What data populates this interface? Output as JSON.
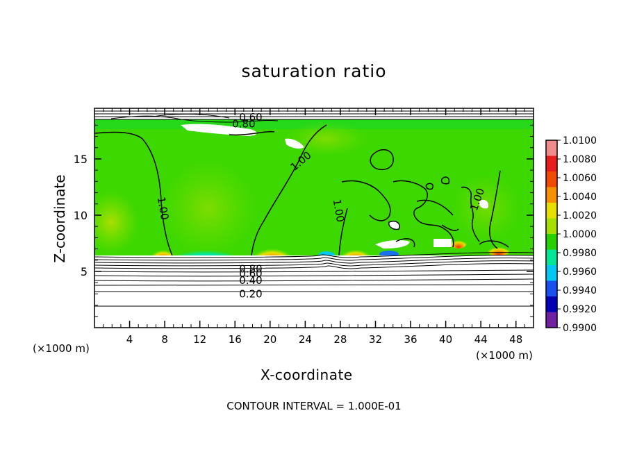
{
  "chart_data": {
    "type": "heatmap",
    "title": "saturation ratio",
    "xlabel": "X-coordinate",
    "ylabel": "Z-coordinate",
    "x_unit": "(×1000 m)",
    "x_unit_left": "(×1000 m)",
    "xlim": [
      0,
      50
    ],
    "ylim": [
      0,
      19.5
    ],
    "x_ticks": [
      4,
      8,
      12,
      16,
      20,
      24,
      28,
      32,
      36,
      40,
      44,
      48
    ],
    "y_ticks": [
      5,
      10,
      15
    ],
    "colorbar": {
      "labels": [
        "1.0100",
        "1.0080",
        "1.0060",
        "1.0040",
        "1.0020",
        "1.0000",
        "0.9980",
        "0.9960",
        "0.9940",
        "0.9920",
        "0.9900"
      ],
      "colors": [
        "#f08c8c",
        "#e81e1e",
        "#f04a00",
        "#f59000",
        "#e6e000",
        "#a6e000",
        "#28d000",
        "#00e896",
        "#00c8f0",
        "#1a50f0",
        "#0000b4",
        "#7020a0"
      ]
    },
    "contour_labels": [
      {
        "text": "0.60"
      },
      {
        "text": "0.80"
      },
      {
        "text": "1.00"
      },
      {
        "text": "1.00"
      },
      {
        "text": "1.00"
      },
      {
        "text": "1.00"
      },
      {
        "text": "0.80"
      },
      {
        "text": "0.60"
      },
      {
        "text": "0.40"
      },
      {
        "text": "0.20"
      }
    ],
    "footnote": "CONTOUR INTERVAL = 1.000E-01"
  }
}
